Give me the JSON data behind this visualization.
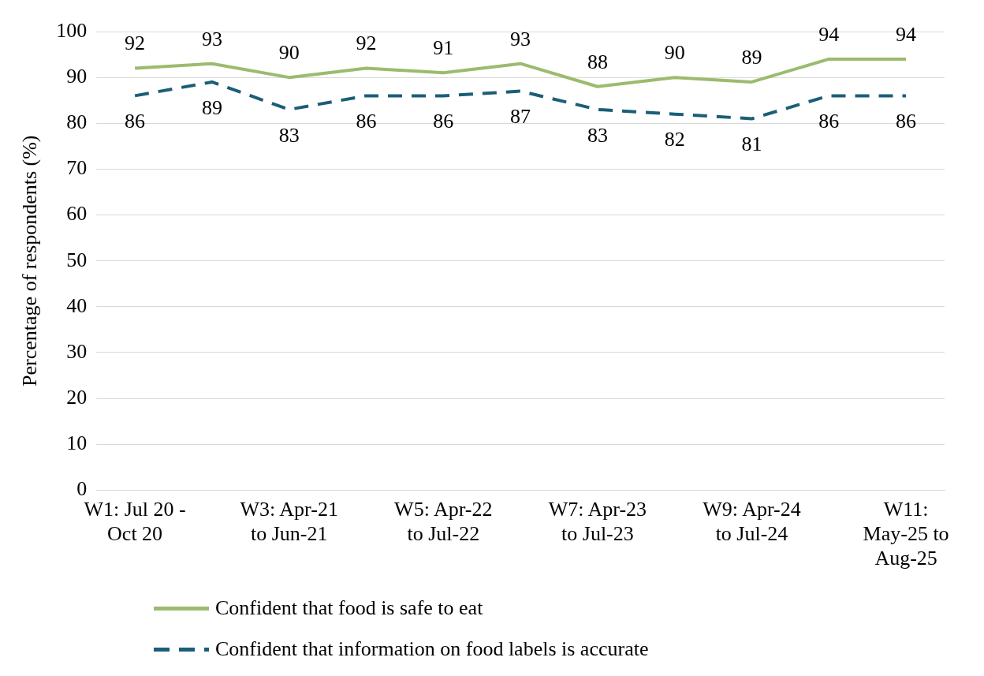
{
  "chart_data": {
    "type": "line",
    "ylabel": "Percentage of respondents (%)",
    "categories": [
      "W1: Jul 20 - Oct 20",
      null,
      "W3: Apr-21 to Jun-21",
      null,
      "W5: Apr-22 to Jul-22",
      null,
      "W7: Apr-23 to Jul-23",
      null,
      "W9: Apr-24 to Jul-24",
      null,
      "W11: May-25 to Aug-25"
    ],
    "series": [
      {
        "name": "Confident that food is safe to eat",
        "color": "#9bbb6e",
        "line_style": "solid",
        "values": [
          92,
          93,
          90,
          92,
          91,
          93,
          88,
          90,
          89,
          94,
          94
        ]
      },
      {
        "name": "Confident that information on food labels is accurate",
        "color": "#1b5e78",
        "line_style": "dashed",
        "values": [
          86,
          89,
          83,
          86,
          86,
          87,
          83,
          82,
          81,
          86,
          86
        ]
      }
    ],
    "ylim": [
      0,
      100
    ],
    "yticks": [
      0,
      10,
      20,
      30,
      40,
      50,
      60,
      70,
      80,
      90,
      100
    ],
    "grid": "y",
    "legend": "bottom",
    "marker": "none",
    "data_labels": true
  }
}
